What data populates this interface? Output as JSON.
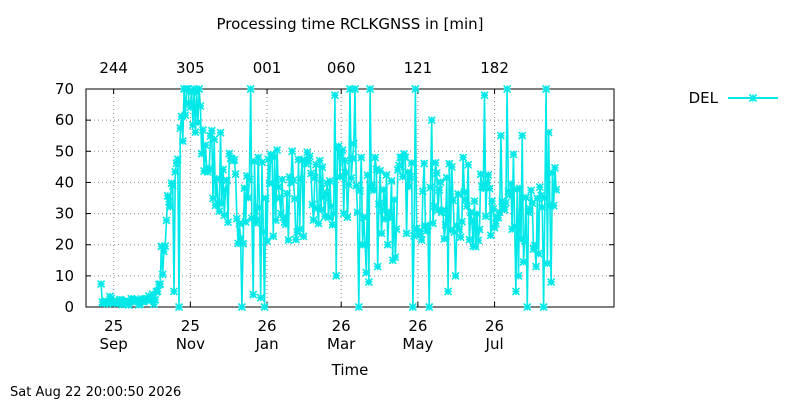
{
  "chart_data": {
    "type": "line",
    "title": "Processing time RCLKGNSS in [min]",
    "xlabel": "Time",
    "ylabel": "",
    "ylim": [
      0,
      70
    ],
    "xlim": [
      0,
      372
    ],
    "grid": true,
    "legend_position": "top-right, outside plot",
    "x_unit": "days",
    "y_ticks": [
      0,
      10,
      20,
      30,
      40,
      50,
      60,
      70
    ],
    "x_ticks_bottom": [
      {
        "x": 0,
        "line1": "25",
        "line2": "Sep"
      },
      {
        "x": 61,
        "line1": "25",
        "line2": "Nov"
      },
      {
        "x": 122,
        "line1": "26",
        "line2": "Jan"
      },
      {
        "x": 181,
        "line1": "26",
        "line2": "Mar"
      },
      {
        "x": 242,
        "line1": "26",
        "line2": "May"
      },
      {
        "x": 303,
        "line1": "26",
        "line2": "Jul"
      }
    ],
    "x_ticks_top": [
      {
        "x": 0,
        "label": "244"
      },
      {
        "x": 61,
        "label": "305"
      },
      {
        "x": 122,
        "label": "001"
      },
      {
        "x": 181,
        "label": "060"
      },
      {
        "x": 242,
        "label": "121"
      },
      {
        "x": 303,
        "label": "182"
      }
    ],
    "series": [
      {
        "name": "DEL",
        "color": "#00e8e8",
        "marker": "asterisk",
        "anchors": [
          [
            -10,
            8
          ],
          [
            -9,
            1
          ],
          [
            -7,
            2
          ],
          [
            -5,
            1
          ],
          [
            -3,
            3
          ],
          [
            0,
            1
          ],
          [
            5,
            2
          ],
          [
            10,
            1
          ],
          [
            15,
            2
          ],
          [
            20,
            1
          ],
          [
            25,
            3
          ],
          [
            30,
            2
          ],
          [
            35,
            5
          ],
          [
            40,
            20
          ],
          [
            43,
            27
          ],
          [
            45,
            40
          ],
          [
            47,
            44
          ],
          [
            50,
            48
          ],
          [
            52,
            55
          ],
          [
            55,
            60
          ],
          [
            58,
            64
          ],
          [
            60,
            62
          ],
          [
            63,
            58
          ],
          [
            66,
            55
          ],
          [
            70,
            52
          ],
          [
            75,
            48
          ],
          [
            80,
            45
          ],
          [
            85,
            42
          ],
          [
            90,
            38
          ],
          [
            95,
            36
          ],
          [
            100,
            34
          ],
          [
            110,
            36
          ],
          [
            120,
            35
          ],
          [
            130,
            37
          ],
          [
            140,
            34
          ],
          [
            150,
            36
          ],
          [
            160,
            35
          ],
          [
            170,
            33
          ],
          [
            180,
            38
          ],
          [
            190,
            40
          ],
          [
            200,
            38
          ],
          [
            210,
            37
          ],
          [
            220,
            36
          ],
          [
            230,
            37
          ],
          [
            240,
            35
          ],
          [
            250,
            34
          ],
          [
            260,
            33
          ],
          [
            270,
            34
          ],
          [
            280,
            33
          ],
          [
            290,
            32
          ],
          [
            300,
            30
          ],
          [
            310,
            28
          ],
          [
            320,
            26
          ],
          [
            330,
            25
          ],
          [
            340,
            28
          ],
          [
            348,
            32
          ],
          [
            352,
            36
          ]
        ],
        "amplitude": [
          [
            -10,
            0.5
          ],
          [
            30,
            1
          ],
          [
            36,
            4
          ],
          [
            45,
            9
          ],
          [
            60,
            10
          ],
          [
            90,
            11
          ],
          [
            180,
            11
          ],
          [
            260,
            10
          ],
          [
            330,
            10
          ],
          [
            352,
            10
          ]
        ],
        "spikes": [
          [
            52,
            0
          ],
          [
            48,
            5
          ],
          [
            58,
            70
          ],
          [
            62,
            69
          ],
          [
            64,
            70
          ],
          [
            66,
            69
          ],
          [
            68,
            70
          ],
          [
            102,
            0
          ],
          [
            109,
            70
          ],
          [
            111,
            4
          ],
          [
            117,
            3
          ],
          [
            115,
            48
          ],
          [
            113,
            27
          ],
          [
            120,
            0
          ],
          [
            125,
            49
          ],
          [
            132,
            35
          ],
          [
            133,
            30
          ],
          [
            142,
            50
          ],
          [
            155,
            47
          ],
          [
            164,
            47
          ],
          [
            176,
            68
          ],
          [
            177,
            10
          ],
          [
            184,
            47
          ],
          [
            188,
            70
          ],
          [
            192,
            70
          ],
          [
            195,
            0
          ],
          [
            197,
            48
          ],
          [
            198,
            20
          ],
          [
            200,
            20
          ],
          [
            201,
            11
          ],
          [
            203,
            8
          ],
          [
            204,
            70
          ],
          [
            208,
            48
          ],
          [
            210,
            13
          ],
          [
            218,
            20
          ],
          [
            222,
            15
          ],
          [
            224,
            16
          ],
          [
            232,
            48
          ],
          [
            238,
            0
          ],
          [
            240,
            70
          ],
          [
            251,
            0
          ],
          [
            253,
            60
          ],
          [
            257,
            43
          ],
          [
            266,
            5
          ],
          [
            272,
            10
          ],
          [
            278,
            48
          ],
          [
            287,
            34
          ],
          [
            295,
            68
          ],
          [
            300,
            23
          ],
          [
            308,
            55
          ],
          [
            313,
            70
          ],
          [
            318,
            49
          ],
          [
            320,
            5
          ],
          [
            322,
            10
          ],
          [
            325,
            55
          ],
          [
            329,
            0
          ],
          [
            336,
            13
          ],
          [
            342,
            0
          ],
          [
            344,
            70
          ],
          [
            345,
            14
          ],
          [
            346,
            56
          ],
          [
            348,
            8
          ],
          [
            349,
            43
          ]
        ],
        "seed": 7
      }
    ]
  },
  "timestamp": "Sat Aug 22 20:00:50 2026"
}
